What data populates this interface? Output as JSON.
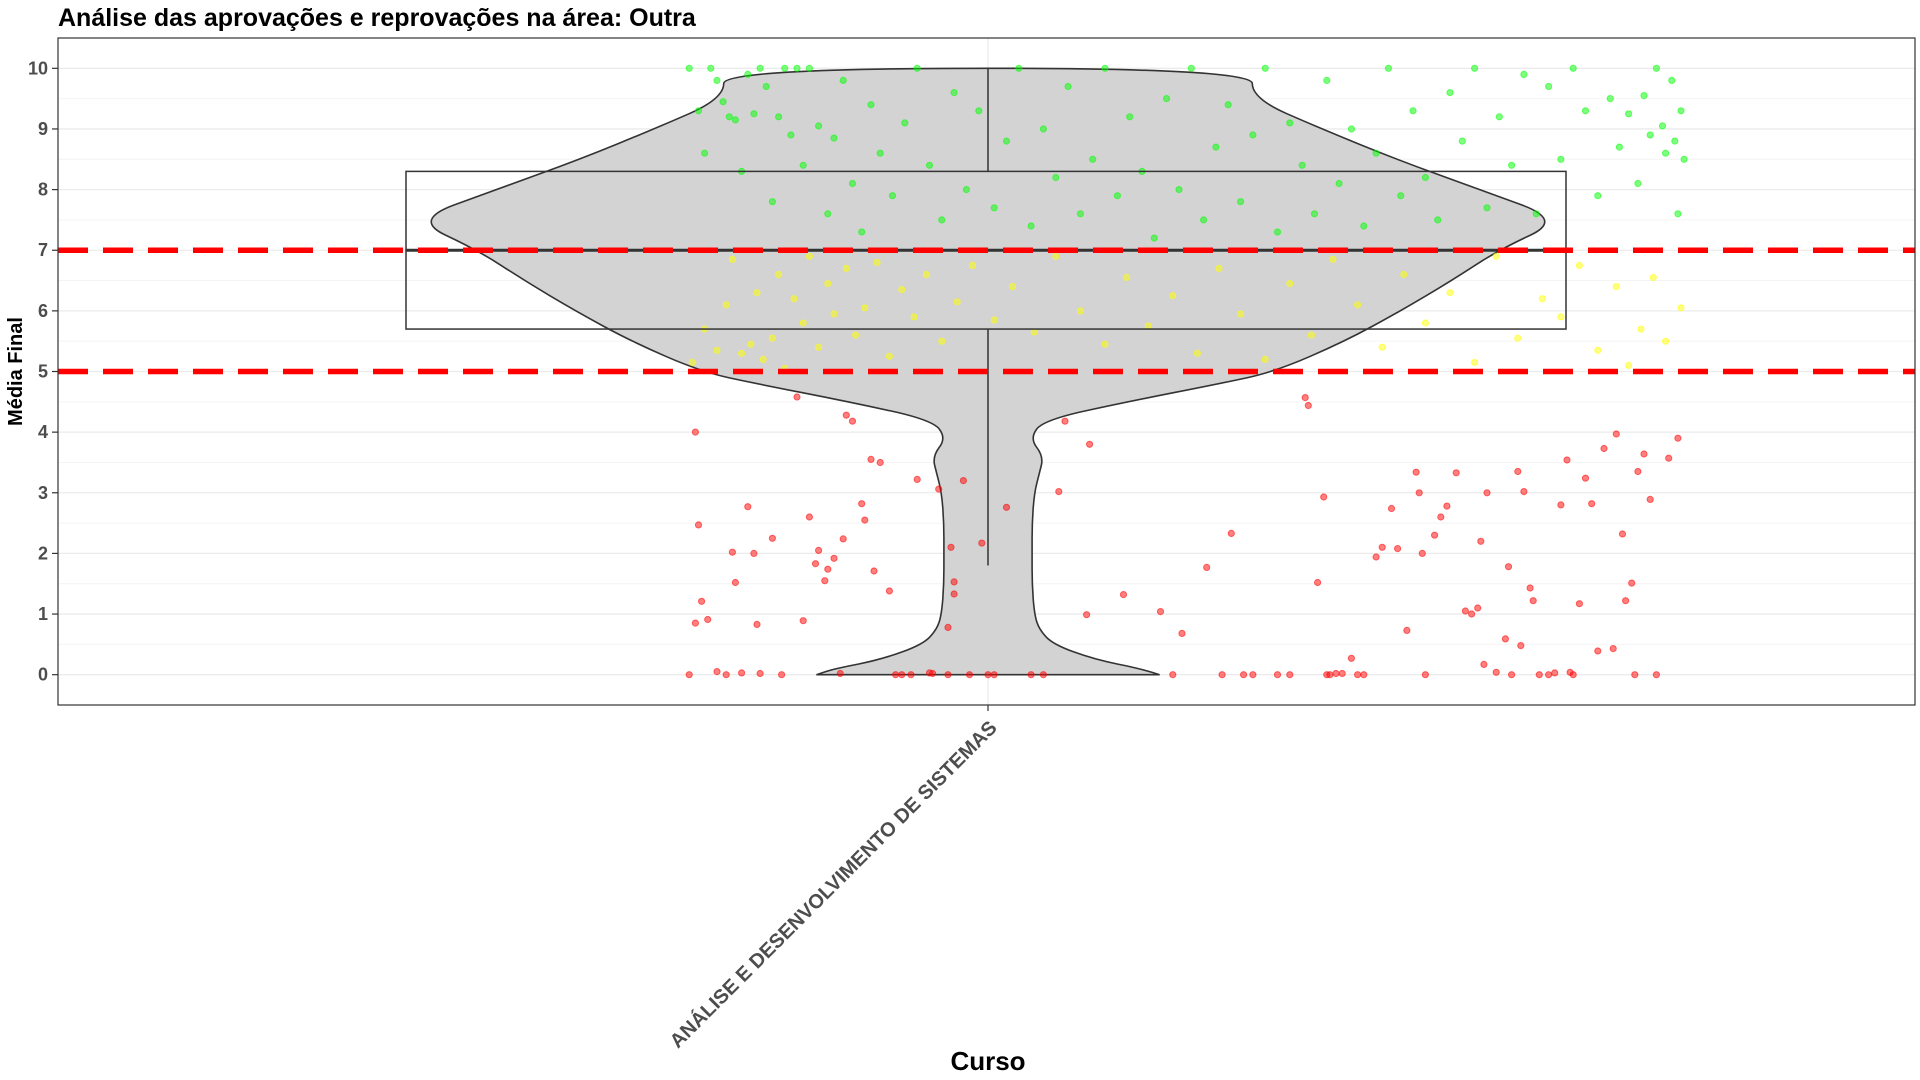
{
  "chart_data": {
    "type": "violin",
    "title": "Análise das aprovações e reprovações na área:  Outra",
    "xlabel": "Curso",
    "ylabel": "Média Final",
    "categories": [
      "ANÁLISE E DESENVOLVIMENTO DE SISTEMAS"
    ],
    "ylim": [
      -0.5,
      10.5
    ],
    "yticks": [
      0,
      1,
      2,
      3,
      4,
      5,
      6,
      7,
      8,
      9,
      10
    ],
    "grid": true,
    "legend": "none",
    "reference_lines": [
      {
        "y": 7,
        "color": "#ff0000",
        "style": "dashed"
      },
      {
        "y": 5,
        "color": "#ff0000",
        "style": "dashed"
      }
    ],
    "boxplot": {
      "min": 1.8,
      "q1": 5.7,
      "median": 7.0,
      "q3": 8.3,
      "max": 10.0
    },
    "violin_density": [
      [
        0.0,
        0.37
      ],
      [
        0.1,
        0.33
      ],
      [
        0.25,
        0.23
      ],
      [
        0.5,
        0.14
      ],
      [
        0.75,
        0.11
      ],
      [
        1.0,
        0.1
      ],
      [
        1.5,
        0.095
      ],
      [
        2.0,
        0.095
      ],
      [
        2.5,
        0.095
      ],
      [
        3.0,
        0.1
      ],
      [
        3.3,
        0.11
      ],
      [
        3.6,
        0.12
      ],
      [
        3.9,
        0.09
      ],
      [
        4.2,
        0.12
      ],
      [
        4.5,
        0.3
      ],
      [
        4.8,
        0.5
      ],
      [
        5.0,
        0.62
      ],
      [
        5.5,
        0.77
      ],
      [
        6.0,
        0.89
      ],
      [
        6.5,
        1.0
      ],
      [
        7.0,
        1.1
      ],
      [
        7.5,
        1.24
      ],
      [
        8.0,
        1.06
      ],
      [
        8.5,
        0.88
      ],
      [
        9.0,
        0.72
      ],
      [
        9.5,
        0.57
      ],
      [
        10.0,
        0.57
      ]
    ],
    "point_colors": {
      "aprovado": "#00ff00",
      "recuperacao": "#ffff00",
      "reprovado": "#ff0000"
    },
    "points_reprovado": [
      [
        -0.97,
        0.0
      ],
      [
        -0.95,
        4.0
      ],
      [
        -0.94,
        2.47
      ],
      [
        -0.93,
        1.21
      ],
      [
        -0.91,
        0.91
      ],
      [
        -0.95,
        0.85
      ],
      [
        -0.88,
        0.05
      ],
      [
        -0.85,
        0.0
      ],
      [
        -0.83,
        2.02
      ],
      [
        -0.82,
        1.52
      ],
      [
        -0.8,
        0.03
      ],
      [
        -0.78,
        2.77
      ],
      [
        -0.76,
        2.0
      ],
      [
        -0.75,
        0.83
      ],
      [
        -0.74,
        0.02
      ],
      [
        -0.7,
        2.25
      ],
      [
        -0.67,
        0.0
      ],
      [
        -0.62,
        4.58
      ],
      [
        -0.6,
        0.89
      ],
      [
        -0.58,
        2.6
      ],
      [
        -0.56,
        1.83
      ],
      [
        -0.55,
        2.05
      ],
      [
        -0.53,
        1.55
      ],
      [
        -0.52,
        1.74
      ],
      [
        -0.5,
        1.92
      ],
      [
        -0.48,
        0.02
      ],
      [
        -0.47,
        2.24
      ],
      [
        -0.46,
        4.28
      ],
      [
        -0.44,
        4.18
      ],
      [
        -0.41,
        2.82
      ],
      [
        -0.4,
        2.55
      ],
      [
        -0.38,
        3.55
      ],
      [
        -0.37,
        1.71
      ],
      [
        -0.35,
        3.5
      ],
      [
        -0.32,
        1.38
      ],
      [
        -0.3,
        0.0
      ],
      [
        -0.28,
        0.0
      ],
      [
        -0.25,
        0.0
      ],
      [
        -0.23,
        3.22
      ],
      [
        -0.19,
        0.03
      ],
      [
        -0.18,
        0.02
      ],
      [
        -0.16,
        3.06
      ],
      [
        -0.13,
        0.78
      ],
      [
        -0.13,
        0.0
      ],
      [
        -0.12,
        2.1
      ],
      [
        -0.11,
        1.33
      ],
      [
        -0.11,
        1.53
      ],
      [
        -0.08,
        3.2
      ],
      [
        -0.06,
        0.0
      ],
      [
        -0.02,
        2.17
      ],
      [
        0.0,
        0.0
      ],
      [
        0.02,
        0.0
      ],
      [
        0.06,
        2.76
      ],
      [
        0.14,
        0.0
      ],
      [
        0.18,
        0.0
      ],
      [
        0.23,
        3.02
      ],
      [
        0.25,
        4.18
      ],
      [
        0.32,
        0.99
      ],
      [
        0.33,
        3.8
      ],
      [
        0.44,
        1.32
      ],
      [
        0.56,
        1.04
      ],
      [
        0.6,
        0.0
      ],
      [
        0.63,
        0.68
      ],
      [
        0.71,
        1.77
      ],
      [
        0.76,
        0.0
      ],
      [
        0.79,
        2.33
      ],
      [
        0.83,
        0.0
      ],
      [
        0.86,
        0.0
      ],
      [
        0.94,
        0.0
      ],
      [
        0.98,
        0.0
      ],
      [
        1.03,
        4.57
      ],
      [
        1.04,
        4.44
      ],
      [
        1.07,
        1.52
      ],
      [
        1.09,
        2.93
      ],
      [
        1.1,
        0.0
      ],
      [
        1.11,
        0.0
      ],
      [
        1.13,
        0.02
      ],
      [
        1.15,
        0.02
      ],
      [
        1.18,
        0.27
      ],
      [
        1.2,
        0.0
      ],
      [
        1.22,
        0.0
      ],
      [
        1.26,
        1.94
      ],
      [
        1.28,
        2.1
      ],
      [
        1.31,
        2.74
      ],
      [
        1.33,
        2.08
      ],
      [
        1.36,
        0.73
      ],
      [
        1.39,
        3.34
      ],
      [
        1.4,
        3.0
      ],
      [
        1.41,
        2.0
      ],
      [
        1.42,
        0.0
      ],
      [
        1.45,
        2.3
      ],
      [
        1.47,
        2.6
      ],
      [
        1.49,
        2.78
      ],
      [
        1.52,
        3.33
      ],
      [
        1.55,
        1.05
      ],
      [
        1.57,
        1.0
      ],
      [
        1.59,
        1.1
      ],
      [
        1.6,
        2.2
      ],
      [
        1.61,
        0.17
      ],
      [
        1.62,
        3.0
      ],
      [
        1.65,
        0.04
      ],
      [
        1.68,
        0.59
      ],
      [
        1.69,
        1.78
      ],
      [
        1.7,
        0.0
      ],
      [
        1.72,
        3.35
      ],
      [
        1.73,
        0.48
      ],
      [
        1.74,
        3.02
      ],
      [
        1.76,
        1.43
      ],
      [
        1.77,
        1.22
      ],
      [
        1.79,
        0.0
      ],
      [
        1.82,
        0.0
      ],
      [
        1.84,
        0.03
      ],
      [
        1.86,
        2.8
      ],
      [
        1.88,
        3.54
      ],
      [
        1.89,
        0.04
      ],
      [
        1.9,
        0.0
      ],
      [
        1.92,
        1.17
      ],
      [
        1.94,
        3.24
      ],
      [
        1.96,
        2.82
      ],
      [
        1.98,
        0.39
      ],
      [
        2.0,
        3.73
      ],
      [
        2.03,
        0.43
      ],
      [
        2.04,
        3.97
      ],
      [
        2.06,
        2.32
      ],
      [
        2.07,
        1.22
      ],
      [
        2.09,
        1.51
      ],
      [
        2.1,
        0.0
      ],
      [
        2.11,
        3.35
      ],
      [
        2.13,
        3.64
      ],
      [
        2.15,
        2.89
      ],
      [
        2.17,
        0.0
      ],
      [
        2.21,
        3.57
      ],
      [
        2.24,
        3.9
      ]
    ],
    "points_recuperacao": [
      [
        -0.96,
        5.15
      ],
      [
        -0.92,
        5.7
      ],
      [
        -0.88,
        5.35
      ],
      [
        -0.85,
        6.1
      ],
      [
        -0.83,
        6.85
      ],
      [
        -0.8,
        5.3
      ],
      [
        -0.77,
        5.45
      ],
      [
        -0.75,
        6.3
      ],
      [
        -0.73,
        5.2
      ],
      [
        -0.7,
        5.55
      ],
      [
        -0.68,
        6.6
      ],
      [
        -0.66,
        5.05
      ],
      [
        -0.63,
        6.2
      ],
      [
        -0.6,
        5.8
      ],
      [
        -0.58,
        6.9
      ],
      [
        -0.55,
        5.4
      ],
      [
        -0.52,
        6.45
      ],
      [
        -0.5,
        5.95
      ],
      [
        -0.46,
        6.7
      ],
      [
        -0.43,
        5.6
      ],
      [
        -0.4,
        6.05
      ],
      [
        -0.36,
        6.8
      ],
      [
        -0.32,
        5.25
      ],
      [
        -0.28,
        6.35
      ],
      [
        -0.24,
        5.9
      ],
      [
        -0.2,
        6.6
      ],
      [
        -0.15,
        5.5
      ],
      [
        -0.1,
        6.15
      ],
      [
        -0.05,
        6.75
      ],
      [
        0.02,
        5.85
      ],
      [
        0.08,
        6.4
      ],
      [
        0.15,
        5.65
      ],
      [
        0.22,
        6.9
      ],
      [
        0.3,
        6.0
      ],
      [
        0.38,
        5.45
      ],
      [
        0.45,
        6.55
      ],
      [
        0.52,
        5.75
      ],
      [
        0.6,
        6.25
      ],
      [
        0.68,
        5.3
      ],
      [
        0.75,
        6.7
      ],
      [
        0.82,
        5.95
      ],
      [
        0.9,
        5.2
      ],
      [
        0.98,
        6.45
      ],
      [
        1.05,
        5.6
      ],
      [
        1.12,
        6.85
      ],
      [
        1.2,
        6.1
      ],
      [
        1.28,
        5.4
      ],
      [
        1.35,
        6.6
      ],
      [
        1.42,
        5.8
      ],
      [
        1.5,
        6.3
      ],
      [
        1.58,
        5.15
      ],
      [
        1.65,
        6.9
      ],
      [
        1.72,
        5.55
      ],
      [
        1.8,
        6.2
      ],
      [
        1.86,
        5.9
      ],
      [
        1.92,
        6.75
      ],
      [
        1.98,
        5.35
      ],
      [
        2.04,
        6.4
      ],
      [
        2.08,
        5.1
      ],
      [
        2.12,
        5.7
      ],
      [
        2.16,
        6.55
      ],
      [
        2.2,
        5.5
      ],
      [
        2.25,
        6.05
      ]
    ],
    "points_aprovado": [
      [
        -0.97,
        10.0
      ],
      [
        -0.94,
        9.3
      ],
      [
        -0.92,
        8.6
      ],
      [
        -0.9,
        10.0
      ],
      [
        -0.88,
        9.8
      ],
      [
        -0.86,
        9.45
      ],
      [
        -0.84,
        9.2
      ],
      [
        -0.82,
        9.15
      ],
      [
        -0.8,
        8.3
      ],
      [
        -0.78,
        9.9
      ],
      [
        -0.76,
        9.25
      ],
      [
        -0.74,
        10.0
      ],
      [
        -0.72,
        9.7
      ],
      [
        -0.7,
        7.8
      ],
      [
        -0.68,
        9.2
      ],
      [
        -0.66,
        10.0
      ],
      [
        -0.64,
        8.9
      ],
      [
        -0.62,
        10.0
      ],
      [
        -0.6,
        8.4
      ],
      [
        -0.58,
        10.0
      ],
      [
        -0.55,
        9.05
      ],
      [
        -0.52,
        7.6
      ],
      [
        -0.5,
        8.85
      ],
      [
        -0.47,
        9.8
      ],
      [
        -0.44,
        8.1
      ],
      [
        -0.41,
        7.3
      ],
      [
        -0.38,
        9.4
      ],
      [
        -0.35,
        8.6
      ],
      [
        -0.31,
        7.9
      ],
      [
        -0.27,
        9.1
      ],
      [
        -0.23,
        10.0
      ],
      [
        -0.19,
        8.4
      ],
      [
        -0.15,
        7.5
      ],
      [
        -0.11,
        9.6
      ],
      [
        -0.07,
        8.0
      ],
      [
        -0.03,
        9.3
      ],
      [
        0.02,
        7.7
      ],
      [
        0.06,
        8.8
      ],
      [
        0.1,
        10.0
      ],
      [
        0.14,
        7.4
      ],
      [
        0.18,
        9.0
      ],
      [
        0.22,
        8.2
      ],
      [
        0.26,
        9.7
      ],
      [
        0.3,
        7.6
      ],
      [
        0.34,
        8.5
      ],
      [
        0.38,
        10.0
      ],
      [
        0.42,
        7.9
      ],
      [
        0.46,
        9.2
      ],
      [
        0.5,
        8.3
      ],
      [
        0.54,
        7.2
      ],
      [
        0.58,
        9.5
      ],
      [
        0.62,
        8.0
      ],
      [
        0.66,
        10.0
      ],
      [
        0.7,
        7.5
      ],
      [
        0.74,
        8.7
      ],
      [
        0.78,
        9.4
      ],
      [
        0.82,
        7.8
      ],
      [
        0.86,
        8.9
      ],
      [
        0.9,
        10.0
      ],
      [
        0.94,
        7.3
      ],
      [
        0.98,
        9.1
      ],
      [
        1.02,
        8.4
      ],
      [
        1.06,
        7.6
      ],
      [
        1.1,
        9.8
      ],
      [
        1.14,
        8.1
      ],
      [
        1.18,
        9.0
      ],
      [
        1.22,
        7.4
      ],
      [
        1.26,
        8.6
      ],
      [
        1.3,
        10.0
      ],
      [
        1.34,
        7.9
      ],
      [
        1.38,
        9.3
      ],
      [
        1.42,
        8.2
      ],
      [
        1.46,
        7.5
      ],
      [
        1.5,
        9.6
      ],
      [
        1.54,
        8.8
      ],
      [
        1.58,
        10.0
      ],
      [
        1.62,
        7.7
      ],
      [
        1.66,
        9.2
      ],
      [
        1.7,
        8.4
      ],
      [
        1.74,
        9.9
      ],
      [
        1.78,
        7.6
      ],
      [
        1.82,
        9.7
      ],
      [
        1.86,
        8.5
      ],
      [
        1.9,
        10.0
      ],
      [
        1.94,
        9.3
      ],
      [
        1.98,
        7.9
      ],
      [
        2.02,
        9.5
      ],
      [
        2.05,
        8.7
      ],
      [
        2.08,
        9.25
      ],
      [
        2.11,
        8.1
      ],
      [
        2.13,
        9.55
      ],
      [
        2.15,
        8.9
      ],
      [
        2.17,
        10.0
      ],
      [
        2.19,
        9.05
      ],
      [
        2.2,
        8.6
      ],
      [
        2.22,
        9.8
      ],
      [
        2.23,
        8.8
      ],
      [
        2.24,
        7.6
      ],
      [
        2.25,
        9.3
      ],
      [
        2.26,
        8.5
      ]
    ]
  }
}
